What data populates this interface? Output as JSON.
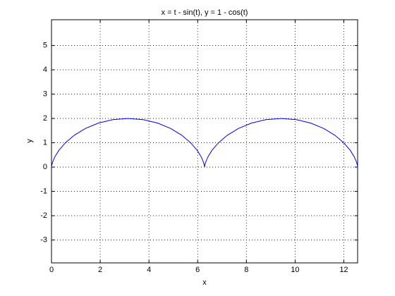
{
  "chart_data": {
    "type": "line",
    "title": "x = t - sin(t), y = 1 - cos(t)",
    "x_label": "x",
    "y_label": "y",
    "x": [
      0,
      0.005,
      0.041,
      0.133,
      0.306,
      0.571,
      0.934,
      1.39,
      1.925,
      2.518,
      3.142,
      3.765,
      4.358,
      4.893,
      5.349,
      5.712,
      5.978,
      6.15,
      6.243,
      6.278,
      6.283,
      6.288,
      6.324,
      6.417,
      6.589,
      6.854,
      7.217,
      7.673,
      8.209,
      8.802,
      9.425,
      10.048,
      10.641,
      11.176,
      11.632,
      11.996,
      12.261,
      12.433,
      12.526,
      12.561,
      12.566
    ],
    "series": [
      {
        "color": "#0000ff",
        "values": [
          0,
          0.049,
          0.191,
          0.412,
          0.691,
          1,
          1.309,
          1.588,
          1.809,
          1.951,
          2,
          1.951,
          1.809,
          1.588,
          1.309,
          1,
          0.691,
          0.412,
          0.191,
          0.049,
          0,
          0.049,
          0.191,
          0.412,
          0.691,
          1,
          1.309,
          1.588,
          1.809,
          1.951,
          2,
          1.951,
          1.809,
          1.588,
          1.309,
          1,
          0.691,
          0.412,
          0.191,
          0.049,
          0
        ]
      }
    ],
    "xlim": [
      0,
      12.566
    ],
    "ylim": [
      -3.94,
      6.06
    ],
    "xticks": [
      0,
      2,
      4,
      6,
      8,
      10,
      12
    ],
    "yticks": [
      -3,
      -2,
      -1,
      0,
      1,
      2,
      3,
      4,
      5
    ],
    "grid": true
  }
}
